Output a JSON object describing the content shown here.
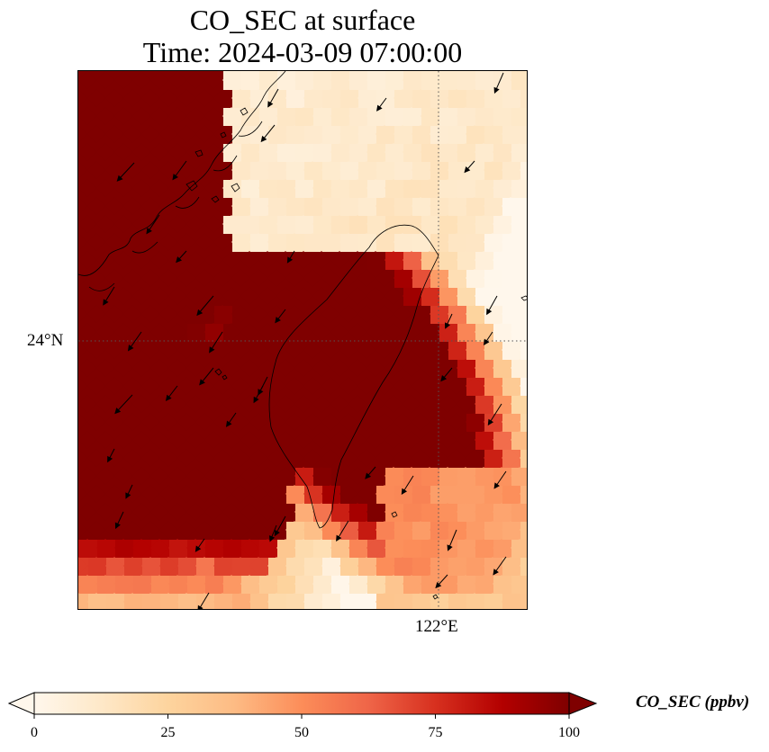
{
  "title": {
    "line1": "CO_SEC at surface",
    "line2": "Time: 2024-03-09 07:00:00"
  },
  "map": {
    "field": "CO_SEC",
    "level": "surface",
    "region": "Taiwan Strait and surrounding waters",
    "lat_gridline": "24°N",
    "lon_gridline": "122°E",
    "gridline_style": "dotted",
    "coastline_color": "#000000",
    "wind_vector_color": "#000000"
  },
  "colorbar": {
    "label": "CO_SEC (ppbv)",
    "ticks": [
      "0",
      "25",
      "50",
      "75",
      "100"
    ],
    "min": 0,
    "max": 100,
    "colormap": "OrRd",
    "extend": "both",
    "colors": [
      "#fff7ec",
      "#fee8c8",
      "#fdd49e",
      "#fdbb84",
      "#fc8d59",
      "#ef6548",
      "#d7301f",
      "#b30000",
      "#7f0000"
    ]
  }
}
